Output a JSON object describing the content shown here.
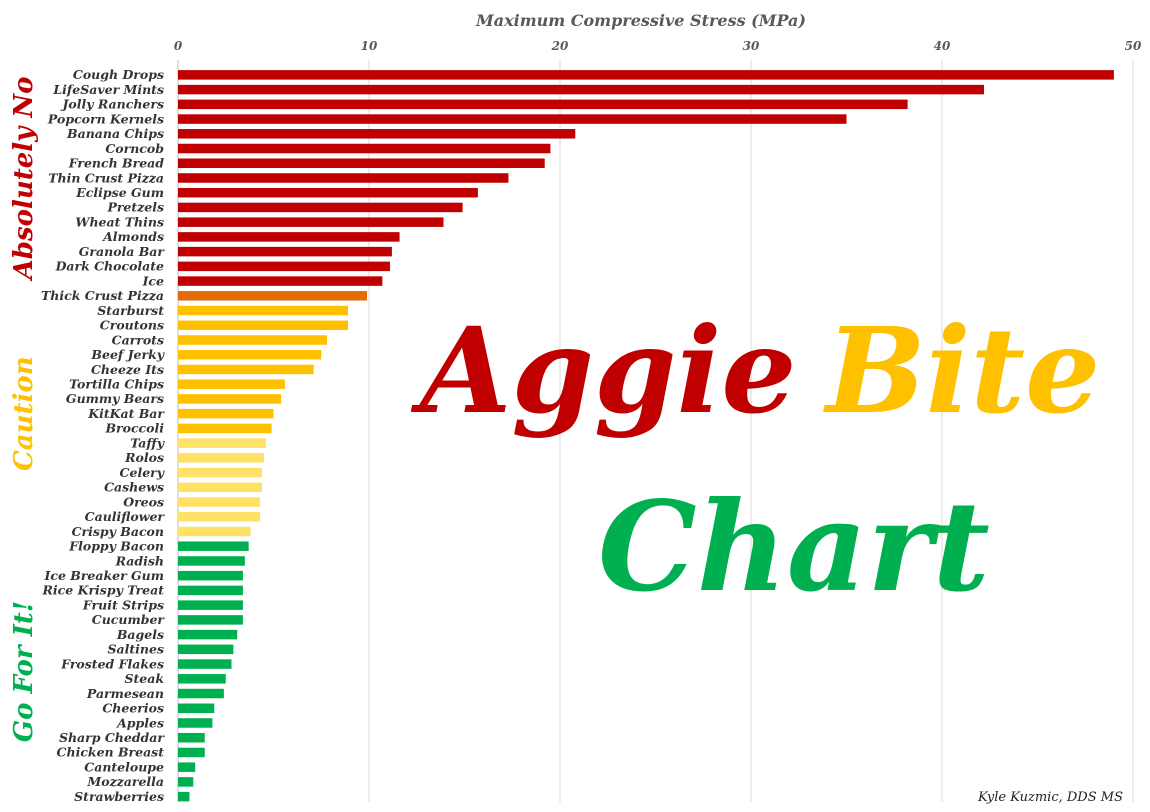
{
  "chart_data": {
    "type": "bar",
    "orientation": "horizontal",
    "xlabel": "Maximum Compressive Stress (MPa)",
    "xlim": [
      0,
      50
    ],
    "xticks": [
      0,
      10,
      20,
      30,
      40,
      50
    ],
    "grid": true,
    "categories": [
      "Cough Drops",
      "LifeSaver Mints",
      "Jolly Ranchers",
      "Popcorn Kernels",
      "Banana Chips",
      "Corncob",
      "French Bread",
      "Thin Crust Pizza",
      "Eclipse Gum",
      "Pretzels",
      "Wheat Thins",
      "Almonds",
      "Granola Bar",
      "Dark Chocolate",
      "Ice",
      "Thick Crust Pizza",
      "Starburst",
      "Croutons",
      "Carrots",
      "Beef Jerky",
      "Cheeze Its",
      "Tortilla Chips",
      "Gummy Bears",
      "KitKat Bar",
      "Broccoli",
      "Taffy",
      "Rolos",
      "Celery",
      "Cashews",
      "Oreos",
      "Cauliflower",
      "Crispy Bacon",
      "Floppy Bacon",
      "Radish",
      "Ice Breaker Gum",
      "Rice Krispy Treat",
      "Fruit Strips",
      "Cucumber",
      "Bagels",
      "Saltines",
      "Frosted Flakes",
      "Steak",
      "Parmesean",
      "Cheerios",
      "Apples",
      "Sharp Cheddar",
      "Chicken Breast",
      "Canteloupe",
      "Mozzarella",
      "Strawberries"
    ],
    "values": [
      49,
      42.2,
      38.2,
      35,
      20.8,
      19.5,
      19.2,
      17.3,
      15.7,
      14.9,
      13.9,
      11.6,
      11.2,
      11.1,
      10.7,
      9.9,
      8.9,
      8.9,
      7.8,
      7.5,
      7.1,
      5.6,
      5.4,
      5.0,
      4.9,
      4.6,
      4.5,
      4.4,
      4.4,
      4.3,
      4.3,
      3.8,
      3.7,
      3.5,
      3.4,
      3.4,
      3.4,
      3.4,
      3.1,
      2.9,
      2.8,
      2.5,
      2.4,
      1.9,
      1.8,
      1.4,
      1.4,
      0.9,
      0.8,
      0.6
    ],
    "bar_colors": [
      "#c00000",
      "#c00000",
      "#c00000",
      "#c00000",
      "#c00000",
      "#c00000",
      "#c00000",
      "#c00000",
      "#c00000",
      "#c00000",
      "#c00000",
      "#c00000",
      "#c00000",
      "#c00000",
      "#c00000",
      "#e26b0a",
      "#ffc000",
      "#ffc000",
      "#ffc000",
      "#ffc000",
      "#ffc000",
      "#ffc000",
      "#ffc000",
      "#ffc000",
      "#ffc000",
      "#ffe168",
      "#ffe168",
      "#ffe168",
      "#ffe168",
      "#ffe168",
      "#ffe168",
      "#ffe168",
      "#00b050",
      "#00b050",
      "#00b050",
      "#00b050",
      "#00b050",
      "#00b050",
      "#00b050",
      "#00b050",
      "#00b050",
      "#00b050",
      "#00b050",
      "#00b050",
      "#00b050",
      "#00b050",
      "#00b050",
      "#00b050",
      "#00b050",
      "#00b050"
    ],
    "groups": [
      {
        "label": "Absolutely No",
        "color": "#c00000",
        "from": 0,
        "to": 14
      },
      {
        "label": "Caution",
        "color": "#ffc000",
        "from": 15,
        "to": 31
      },
      {
        "label": "Go For It!",
        "color": "#00b050",
        "from": 32,
        "to": 49
      }
    ],
    "title_words": [
      {
        "text": "Aggie",
        "color": "#c00000"
      },
      {
        "text": "Bite",
        "color": "#ffc000"
      },
      {
        "text": "Chart",
        "color": "#00b050"
      }
    ],
    "credit": "Kyle Kuzmic, DDS MS"
  }
}
